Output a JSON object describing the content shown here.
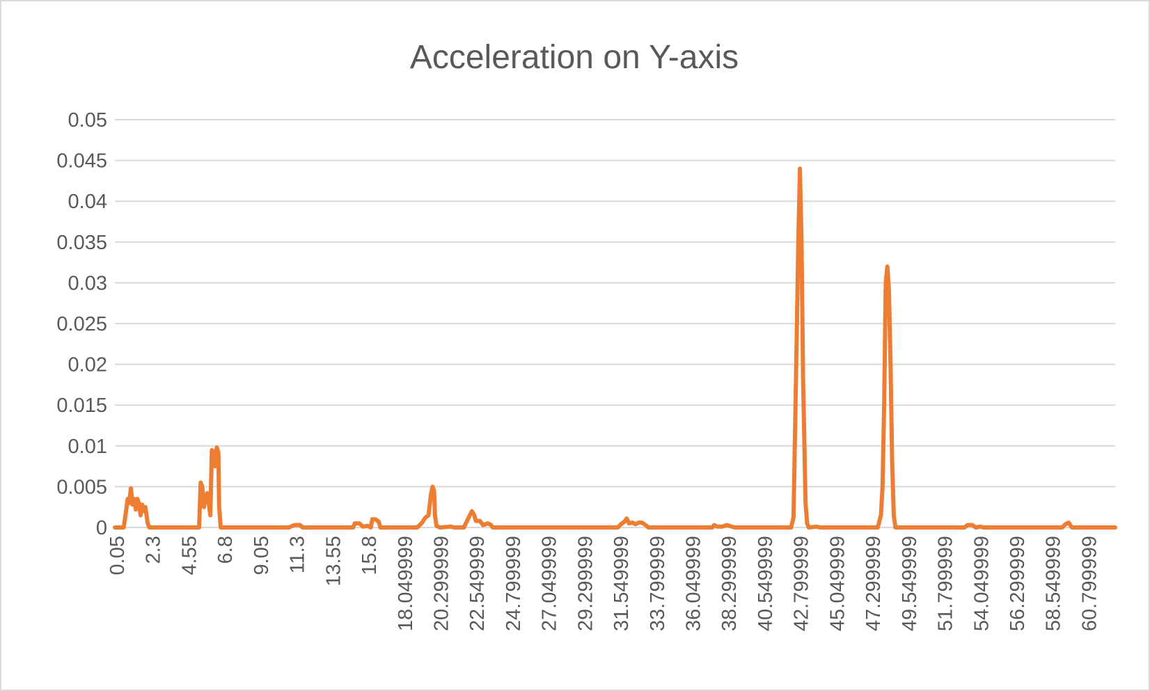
{
  "chart_data": {
    "type": "line",
    "title": "Acceleration on Y-axis",
    "xlabel": "",
    "ylabel": "",
    "ylim": [
      0,
      0.05
    ],
    "y_ticks": [
      "0",
      "0.005",
      "0.01",
      "0.015",
      "0.02",
      "0.025",
      "0.03",
      "0.035",
      "0.04",
      "0.045",
      "0.05"
    ],
    "x_ticks": [
      "0.05",
      "2.3",
      "4.55",
      "6.8",
      "9.05",
      "11.3",
      "13.55",
      "15.8",
      "18.049999",
      "20.299999",
      "22.549999",
      "24.799999",
      "27.049999",
      "29.299999",
      "31.549999",
      "33.799999",
      "36.049999",
      "38.299999",
      "40.549999",
      "42.799999",
      "45.049999",
      "47.299999",
      "49.549999",
      "51.799999",
      "54.049999",
      "56.299999",
      "58.549999",
      "60.799999"
    ],
    "xlim": [
      0.05,
      62.4
    ],
    "grid": true,
    "legend": "none",
    "series": [
      {
        "color": "#ed7d31",
        "points": [
          [
            0.05,
            0
          ],
          [
            0.6,
            0
          ],
          [
            0.75,
            0.002
          ],
          [
            0.85,
            0.0035
          ],
          [
            0.95,
            0.003
          ],
          [
            1.05,
            0.0048
          ],
          [
            1.15,
            0.0028
          ],
          [
            1.25,
            0.0035
          ],
          [
            1.35,
            0.0022
          ],
          [
            1.45,
            0.0035
          ],
          [
            1.55,
            0.003
          ],
          [
            1.65,
            0.0015
          ],
          [
            1.75,
            0.0028
          ],
          [
            1.85,
            0.002
          ],
          [
            1.95,
            0.0025
          ],
          [
            2.1,
            0.0005
          ],
          [
            2.2,
            0
          ],
          [
            5.3,
            0
          ],
          [
            5.4,
            0.0055
          ],
          [
            5.5,
            0.005
          ],
          [
            5.6,
            0.0025
          ],
          [
            5.7,
            0.0035
          ],
          [
            5.8,
            0.0042
          ],
          [
            5.9,
            0.003
          ],
          [
            6.0,
            0.0015
          ],
          [
            6.1,
            0.0095
          ],
          [
            6.2,
            0.0092
          ],
          [
            6.3,
            0.0075
          ],
          [
            6.4,
            0.0098
          ],
          [
            6.5,
            0.0092
          ],
          [
            6.55,
            0.0025
          ],
          [
            6.65,
            0
          ],
          [
            10.9,
            0
          ],
          [
            11.1,
            0.0002
          ],
          [
            11.3,
            0.0003
          ],
          [
            11.6,
            0.0003
          ],
          [
            11.75,
            0
          ],
          [
            14.9,
            0
          ],
          [
            15.0,
            0.0005
          ],
          [
            15.3,
            0.0005
          ],
          [
            15.5,
            0.0001
          ],
          [
            15.8,
            0.0002
          ],
          [
            16.0,
            0
          ],
          [
            16.1,
            0.001
          ],
          [
            16.3,
            0.001
          ],
          [
            16.5,
            0.0007
          ],
          [
            16.6,
            0
          ],
          [
            18.9,
            0
          ],
          [
            19.2,
            0.0006
          ],
          [
            19.4,
            0.0012
          ],
          [
            19.6,
            0.0015
          ],
          [
            19.75,
            0.004
          ],
          [
            19.85,
            0.005
          ],
          [
            19.95,
            0.0045
          ],
          [
            20.0,
            0.0015
          ],
          [
            20.1,
            0.0002
          ],
          [
            20.3,
            0
          ],
          [
            21.0,
            0.0001
          ],
          [
            21.2,
            0
          ],
          [
            21.8,
            0
          ],
          [
            22.1,
            0.0012
          ],
          [
            22.3,
            0.002
          ],
          [
            22.45,
            0.0015
          ],
          [
            22.55,
            0.0008
          ],
          [
            22.8,
            0.0008
          ],
          [
            23.0,
            0.0003
          ],
          [
            23.3,
            0.0005
          ],
          [
            23.5,
            0.0003
          ],
          [
            23.6,
            0
          ],
          [
            31.4,
            0
          ],
          [
            31.6,
            0.0004
          ],
          [
            31.8,
            0.0007
          ],
          [
            31.95,
            0.0011
          ],
          [
            32.1,
            0.0005
          ],
          [
            32.3,
            0.0006
          ],
          [
            32.5,
            0.0004
          ],
          [
            32.7,
            0.0006
          ],
          [
            32.9,
            0.0006
          ],
          [
            33.2,
            0.0002
          ],
          [
            33.3,
            0
          ],
          [
            37.3,
            0
          ],
          [
            37.4,
            0.0003
          ],
          [
            37.6,
            0.0001
          ],
          [
            37.9,
            0.0001
          ],
          [
            38.2,
            0.0003
          ],
          [
            38.5,
            0.0001
          ],
          [
            38.7,
            0
          ],
          [
            42.2,
            0
          ],
          [
            42.35,
            0.0012
          ],
          [
            42.5,
            0.018
          ],
          [
            42.65,
            0.035
          ],
          [
            42.75,
            0.044
          ],
          [
            42.85,
            0.035
          ],
          [
            42.95,
            0.018
          ],
          [
            43.1,
            0.003
          ],
          [
            43.2,
            0.0005
          ],
          [
            43.3,
            0
          ],
          [
            43.8,
            0.0001
          ],
          [
            44.0,
            0
          ],
          [
            47.6,
            0
          ],
          [
            47.8,
            0.0015
          ],
          [
            47.9,
            0.005
          ],
          [
            48.0,
            0.015
          ],
          [
            48.1,
            0.03
          ],
          [
            48.2,
            0.032
          ],
          [
            48.3,
            0.029
          ],
          [
            48.4,
            0.02
          ],
          [
            48.5,
            0.008
          ],
          [
            48.6,
            0.0015
          ],
          [
            48.7,
            0
          ],
          [
            53.0,
            0
          ],
          [
            53.2,
            0.0003
          ],
          [
            53.5,
            0.0003
          ],
          [
            53.7,
            0
          ],
          [
            54.0,
            0.0001
          ],
          [
            54.2,
            0
          ],
          [
            59.1,
            0
          ],
          [
            59.3,
            0.0004
          ],
          [
            59.5,
            0.0006
          ],
          [
            59.7,
            0
          ],
          [
            62.4,
            0
          ]
        ]
      }
    ]
  }
}
